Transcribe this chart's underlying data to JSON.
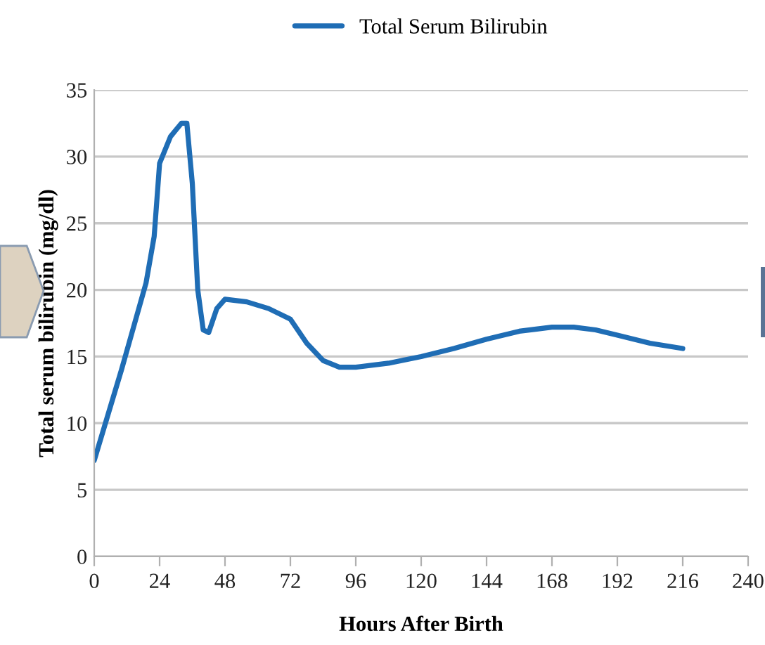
{
  "chart_data": {
    "type": "line",
    "xlabel": "Hours After Birth",
    "ylabel": "Total serum bilirubin (mg/dl)",
    "series": [
      {
        "name": "Total Serum Bilirubin",
        "color": "#1f6db5",
        "x": [
          0,
          10,
          19,
          22,
          24,
          28,
          32,
          34,
          36,
          38,
          40,
          42,
          45,
          48,
          56,
          64,
          72,
          78,
          84,
          90,
          96,
          108,
          120,
          132,
          144,
          156,
          168,
          176,
          184,
          192,
          204,
          216
        ],
        "values": [
          7.2,
          14,
          20.5,
          24,
          29.5,
          31.5,
          32.5,
          32.5,
          28,
          20,
          17,
          16.8,
          18.6,
          19.3,
          19.1,
          18.6,
          17.8,
          16,
          14.7,
          14.2,
          14.2,
          14.5,
          15,
          15.6,
          16.3,
          16.9,
          17.2,
          17.2,
          17.0,
          16.6,
          16.0,
          15.6
        ]
      }
    ],
    "xlim": [
      0,
      240
    ],
    "xticks": [
      0,
      24,
      48,
      72,
      96,
      120,
      144,
      168,
      192,
      216,
      240
    ],
    "ylim": [
      0,
      35
    ],
    "yticks": [
      0,
      5,
      10,
      15,
      20,
      25,
      30,
      35
    ],
    "grid": "y",
    "legend": "top",
    "marker": "none",
    "line_style": "solid"
  }
}
